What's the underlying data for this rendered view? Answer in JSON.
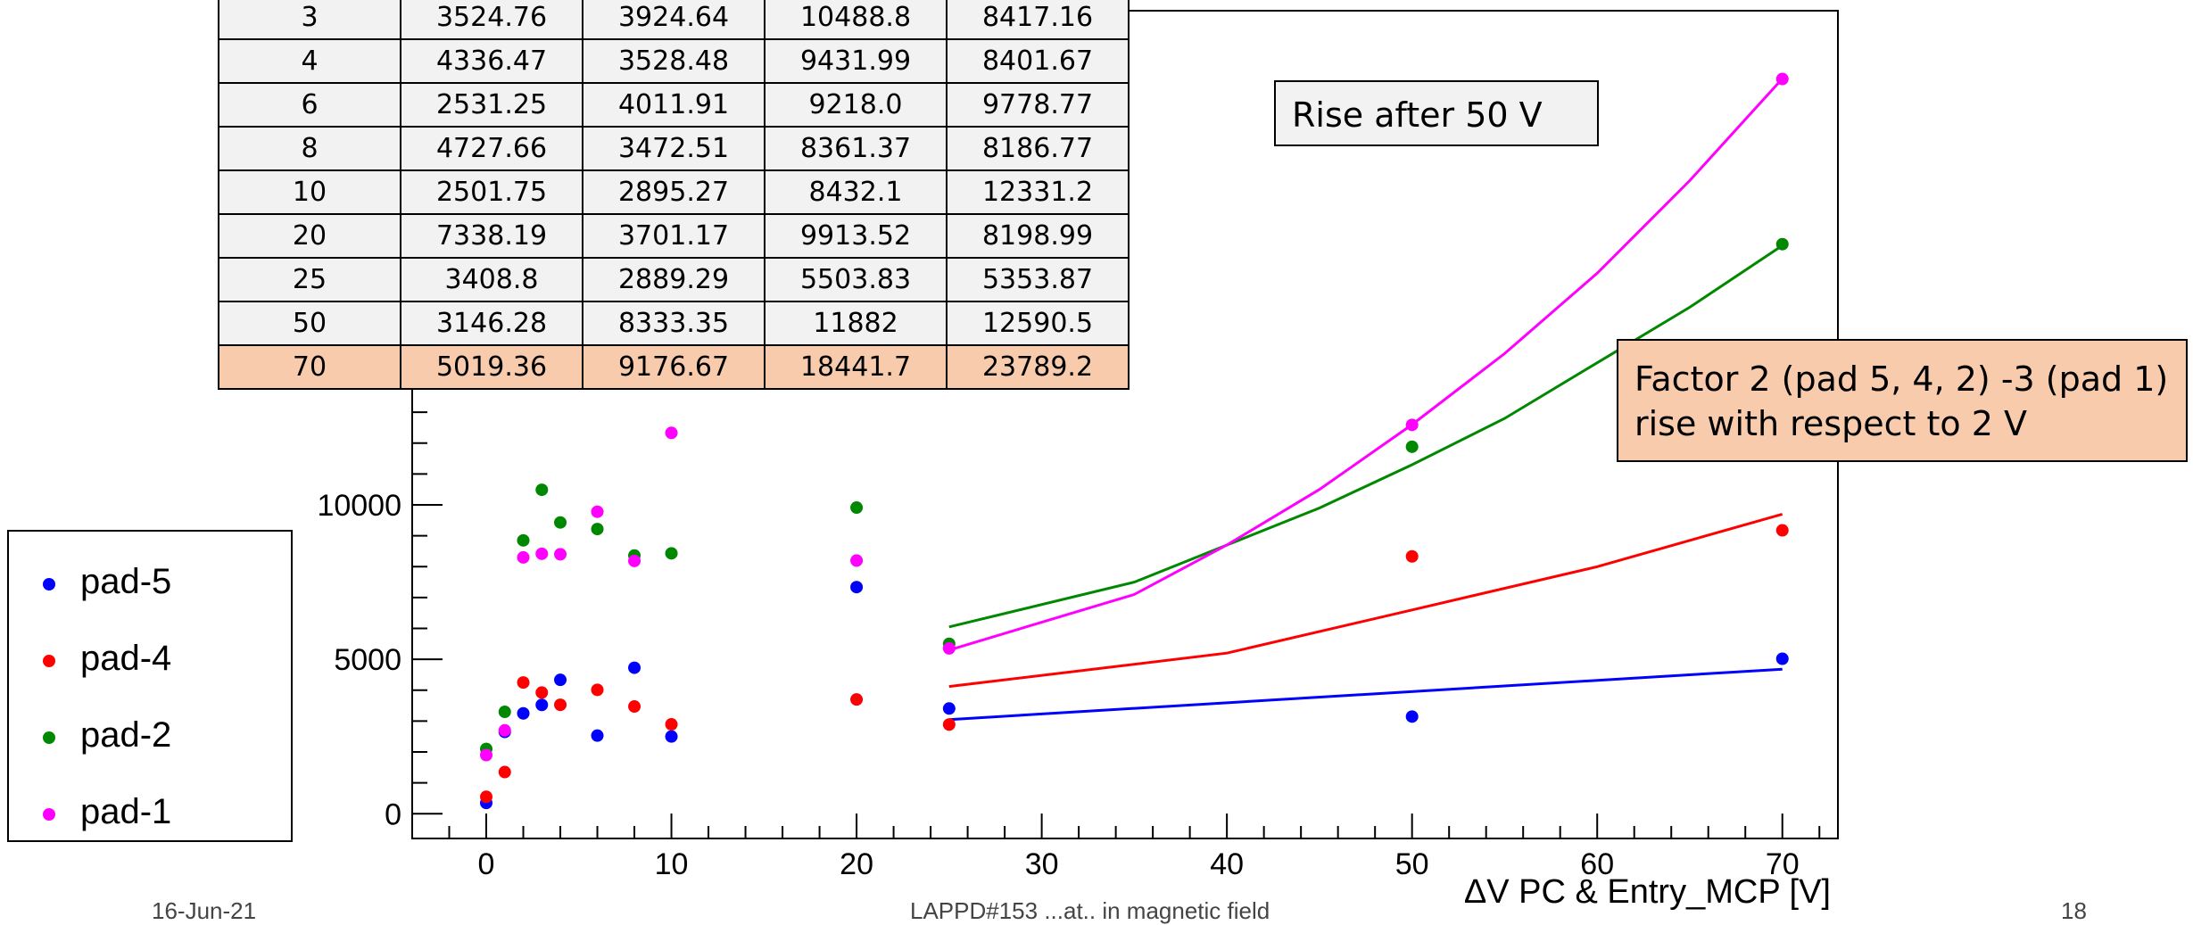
{
  "table": {
    "rows": [
      [
        "3",
        "3524.76",
        "3924.64",
        "10488.8",
        "8417.16"
      ],
      [
        "4",
        "4336.47",
        "3528.48",
        "9431.99",
        "8401.67"
      ],
      [
        "6",
        "2531.25",
        "4011.91",
        "9218.0",
        "9778.77"
      ],
      [
        "8",
        "4727.66",
        "3472.51",
        "8361.37",
        "8186.77"
      ],
      [
        "10",
        "2501.75",
        "2895.27",
        "8432.1",
        "12331.2"
      ],
      [
        "20",
        "7338.19",
        "3701.17",
        "9913.52",
        "8198.99"
      ],
      [
        "25",
        "3408.8",
        "2889.29",
        "5503.83",
        "5353.87"
      ],
      [
        "50",
        "3146.28",
        "8333.35",
        "11882",
        "12590.5"
      ],
      [
        "70",
        "5019.36",
        "9176.67",
        "18441.7",
        "23789.2"
      ]
    ],
    "highlight_color": "#f8cbad",
    "row_color": "#f2f2f2"
  },
  "annotations": {
    "rise_after": "Rise after 50 V",
    "factor_line1": "Factor 2 (pad 5, 4, 2) -3 (pad 1)",
    "factor_line2": "rise with respect to 2 V"
  },
  "footer": {
    "left": "16-Jun-21",
    "center": "LAPPD#153 ...at.. in magnetic field",
    "right": "18"
  },
  "chart_data": {
    "type": "scatter",
    "xlabel": "ΔV PC & Entry_MCP [V]",
    "ylabel": "",
    "xlim": [
      -4,
      73
    ],
    "ylim": [
      -800,
      26000
    ],
    "x_ticks": [
      0,
      10,
      20,
      30,
      40,
      50,
      60,
      70
    ],
    "y_ticks": [
      0,
      5000,
      10000
    ],
    "legend_position": "left",
    "series": [
      {
        "name": "pad-5",
        "color": "#0000ff",
        "points": [
          [
            0,
            350
          ],
          [
            1,
            2650
          ],
          [
            2,
            3250
          ],
          [
            3,
            3524.76
          ],
          [
            4,
            4336.47
          ],
          [
            6,
            2531.25
          ],
          [
            8,
            4727.66
          ],
          [
            10,
            2501.75
          ],
          [
            20,
            7338.19
          ],
          [
            25,
            3408.8
          ],
          [
            50,
            3146.28
          ],
          [
            70,
            5019.36
          ]
        ],
        "fit": [
          [
            25,
            3050
          ],
          [
            70,
            4680
          ]
        ]
      },
      {
        "name": "pad-4",
        "color": "#ff0000",
        "points": [
          [
            0,
            550
          ],
          [
            1,
            1350
          ],
          [
            2,
            4250
          ],
          [
            3,
            3924.64
          ],
          [
            4,
            3528.48
          ],
          [
            6,
            4011.91
          ],
          [
            8,
            3472.51
          ],
          [
            10,
            2895.27
          ],
          [
            20,
            3701.17
          ],
          [
            25,
            2889.29
          ],
          [
            50,
            8333.35
          ],
          [
            70,
            9176.67
          ]
        ],
        "fit": [
          [
            25,
            4120
          ],
          [
            40,
            5200
          ],
          [
            50,
            6600
          ],
          [
            60,
            8000
          ],
          [
            70,
            9700
          ]
        ]
      },
      {
        "name": "pad-2",
        "color": "#008800",
        "points": [
          [
            0,
            2100
          ],
          [
            1,
            3300
          ],
          [
            2,
            8850
          ],
          [
            3,
            10488.8
          ],
          [
            4,
            9431.99
          ],
          [
            6,
            9218.0
          ],
          [
            8,
            8361.37
          ],
          [
            10,
            8432.1
          ],
          [
            20,
            9913.52
          ],
          [
            25,
            5503.83
          ],
          [
            50,
            11882
          ],
          [
            70,
            18441.7
          ]
        ],
        "fit": [
          [
            25,
            6050
          ],
          [
            35,
            7500
          ],
          [
            45,
            9900
          ],
          [
            50,
            11300
          ],
          [
            55,
            12800
          ],
          [
            60,
            14600
          ],
          [
            65,
            16400
          ],
          [
            70,
            18400
          ]
        ]
      },
      {
        "name": "pad-1",
        "color": "#ff00ff",
        "points": [
          [
            0,
            1900
          ],
          [
            1,
            2700
          ],
          [
            2,
            8300
          ],
          [
            3,
            8417.16
          ],
          [
            4,
            8401.67
          ],
          [
            6,
            9778.77
          ],
          [
            8,
            8186.77
          ],
          [
            10,
            12331.2
          ],
          [
            20,
            8198.99
          ],
          [
            25,
            5353.87
          ],
          [
            50,
            12590.5
          ],
          [
            70,
            23789.2
          ]
        ],
        "fit": [
          [
            25,
            5300
          ],
          [
            35,
            7100
          ],
          [
            40,
            8700
          ],
          [
            45,
            10500
          ],
          [
            50,
            12600
          ],
          [
            55,
            14900
          ],
          [
            60,
            17500
          ],
          [
            65,
            20500
          ],
          [
            70,
            23800
          ]
        ]
      }
    ]
  }
}
